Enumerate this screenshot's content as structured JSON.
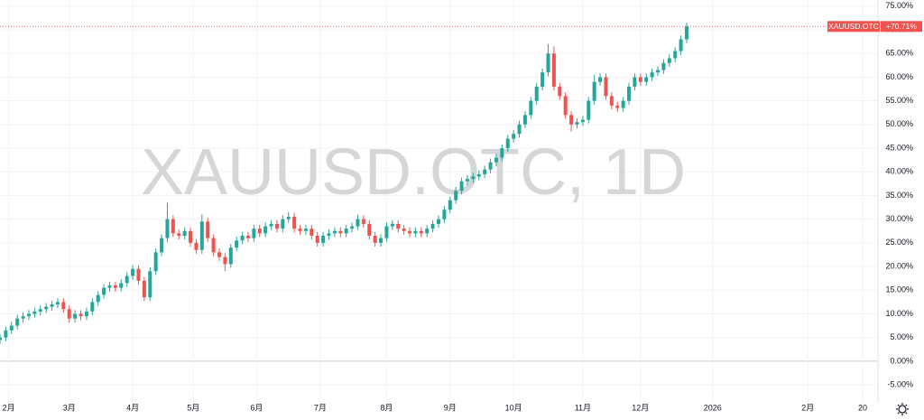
{
  "chart_data": {
    "type": "candlestick",
    "watermark": "XAUUSD.OTC, 1D",
    "symbol": "XAUUSD.OTC",
    "last_value": 70.71,
    "last_label": "+70.71%",
    "up_color": "#26a69a",
    "down_color": "#ef5350",
    "grid": true,
    "xlim": [
      0,
      304
    ],
    "ylim": [
      -8.8,
      76.3
    ],
    "xticks": [
      {
        "value": 3,
        "label": "2月"
      },
      {
        "value": 24,
        "label": "3月"
      },
      {
        "value": 46,
        "label": "4月"
      },
      {
        "value": 67,
        "label": "5月"
      },
      {
        "value": 89,
        "label": "6月"
      },
      {
        "value": 111,
        "label": "7月"
      },
      {
        "value": 134,
        "label": "8月"
      },
      {
        "value": 156,
        "label": "9月"
      },
      {
        "value": 178,
        "label": "10月"
      },
      {
        "value": 202,
        "label": "11月"
      },
      {
        "value": 222,
        "label": "12月"
      },
      {
        "value": 247,
        "label": "2026"
      },
      {
        "value": 280,
        "label": "2月"
      },
      {
        "value": 299,
        "label": "20"
      }
    ],
    "yticks": [
      {
        "value": 75,
        "label": "75.00%"
      },
      {
        "value": 70,
        "label": "70.00%"
      },
      {
        "value": 65,
        "label": "65.00%"
      },
      {
        "value": 60,
        "label": "60.00%"
      },
      {
        "value": 55,
        "label": "55.00%"
      },
      {
        "value": 50,
        "label": "50.00%"
      },
      {
        "value": 45,
        "label": "45.00%"
      },
      {
        "value": 40,
        "label": "40.00%"
      },
      {
        "value": 35,
        "label": "35.00%"
      },
      {
        "value": 30,
        "label": "30.00%"
      },
      {
        "value": 25,
        "label": "25.00%"
      },
      {
        "value": 20,
        "label": "20.00%"
      },
      {
        "value": 15,
        "label": "15.00%"
      },
      {
        "value": 10,
        "label": "10.00%"
      },
      {
        "value": 5,
        "label": "5.00%"
      },
      {
        "value": 0,
        "label": "0.00%"
      },
      {
        "value": -5,
        "label": "-5.00%"
      }
    ],
    "x": [
      0,
      2,
      4,
      6,
      8,
      10,
      12,
      14,
      16,
      18,
      20,
      22,
      24,
      26,
      28,
      30,
      32,
      34,
      36,
      38,
      40,
      42,
      44,
      46,
      48,
      50,
      52,
      54,
      56,
      58,
      60,
      62,
      64,
      66,
      68,
      70,
      72,
      74,
      76,
      78,
      80,
      82,
      84,
      86,
      88,
      90,
      92,
      94,
      96,
      98,
      100,
      102,
      104,
      106,
      108,
      110,
      112,
      114,
      116,
      118,
      120,
      122,
      124,
      126,
      128,
      130,
      132,
      134,
      136,
      138,
      140,
      142,
      144,
      146,
      148,
      150,
      152,
      154,
      156,
      158,
      160,
      162,
      164,
      166,
      168,
      170,
      172,
      174,
      176,
      178,
      180,
      182,
      184,
      186,
      188,
      190,
      192,
      194,
      196,
      198,
      200,
      202,
      204,
      206,
      208,
      210,
      212,
      214,
      216,
      218,
      220,
      222,
      224,
      226,
      228,
      230,
      232,
      234,
      236,
      238
    ],
    "open": [
      4.5,
      5,
      6.5,
      7.5,
      9,
      9.5,
      10,
      10.5,
      11,
      11.5,
      12,
      12.5,
      11,
      9,
      10,
      9.5,
      10.5,
      12.5,
      14,
      15.5,
      16,
      15.5,
      16.5,
      18,
      19.5,
      17,
      13.5,
      19,
      23,
      26,
      30,
      27,
      26.5,
      27.5,
      25,
      23.5,
      29.5,
      26,
      23,
      22,
      20.5,
      24,
      25.5,
      26.5,
      26,
      28,
      27,
      28.5,
      29,
      28,
      30,
      30.5,
      28,
      27.5,
      28,
      26.5,
      25,
      26.5,
      27,
      27.5,
      27,
      28,
      28.5,
      30,
      29,
      26.5,
      25,
      26,
      28.5,
      29,
      28,
      27.5,
      27,
      27.5,
      27,
      28,
      29,
      30,
      32,
      34,
      36,
      38,
      38.5,
      39,
      39.5,
      40.5,
      42,
      43,
      45,
      47,
      48,
      50,
      52,
      55,
      58,
      61,
      65,
      58,
      56,
      52,
      50,
      50.5,
      51,
      55,
      59,
      60,
      56,
      54,
      53.5,
      55,
      58,
      60,
      59,
      60,
      61,
      61.5,
      63,
      64,
      65.5,
      68
    ],
    "high": [
      5.8,
      7.3,
      8.3,
      9.8,
      10.3,
      10.8,
      11.3,
      11.8,
      12.3,
      12.8,
      13.3,
      13.3,
      11.8,
      10.8,
      10.8,
      11.3,
      13.3,
      14.8,
      16.3,
      16.8,
      16.8,
      17.3,
      18.8,
      20.3,
      20.3,
      17.8,
      19.8,
      23.8,
      26.8,
      33.5,
      30.8,
      27.8,
      28.3,
      28.3,
      25.8,
      31,
      30.3,
      26.8,
      23.8,
      22.8,
      24.8,
      26.3,
      27.3,
      27.3,
      28.8,
      28.8,
      29.3,
      29.8,
      29.8,
      30.8,
      31.5,
      31.3,
      28.8,
      28.8,
      28.8,
      27.3,
      27.3,
      27.8,
      28.3,
      28.3,
      28.8,
      29.3,
      31,
      30.8,
      29.8,
      27.3,
      26.8,
      29.3,
      29.8,
      29.8,
      28.8,
      28.3,
      28.3,
      28.3,
      28.8,
      29.8,
      30.8,
      32.8,
      34.8,
      36.8,
      38.8,
      39.3,
      39.8,
      40.3,
      41.3,
      42.8,
      43.8,
      45.8,
      47.8,
      48.8,
      50.8,
      52.8,
      55.8,
      58.8,
      61.8,
      67,
      66.5,
      58.8,
      56.8,
      52.8,
      51.3,
      51.8,
      55.8,
      60.5,
      60.8,
      60.8,
      56.8,
      54.8,
      55.8,
      58.8,
      60.8,
      60.8,
      60.8,
      61.8,
      62.3,
      63.8,
      64.8,
      66.3,
      68.8,
      71.5
    ],
    "low": [
      3.7,
      4.2,
      5.7,
      6.7,
      8.2,
      8.7,
      9.2,
      9.7,
      10.2,
      10.7,
      11.2,
      10.2,
      8.2,
      8.2,
      8.7,
      8.7,
      9.7,
      11.7,
      13.2,
      14.7,
      14.7,
      14.7,
      15.7,
      17.2,
      16.2,
      12.7,
      12.7,
      18.2,
      22.2,
      25.2,
      26.2,
      25.7,
      25.7,
      24.2,
      22.7,
      22.7,
      25.2,
      22.2,
      21.2,
      19,
      19.7,
      23.2,
      24.7,
      25.2,
      25.2,
      26.2,
      26.2,
      27.7,
      27.2,
      27.2,
      29.2,
      27.2,
      26.7,
      26.7,
      25.7,
      24.2,
      24.2,
      25.7,
      26.2,
      26.2,
      26.2,
      27.2,
      27.7,
      28.2,
      25.7,
      24.2,
      24.2,
      25.2,
      27.7,
      27.2,
      26.7,
      26.2,
      26.2,
      26.2,
      26.2,
      27.2,
      28.2,
      29.2,
      31.2,
      33.2,
      35.2,
      37.2,
      37.7,
      38.2,
      38.7,
      39.7,
      41.2,
      42.2,
      44.2,
      46.2,
      47.2,
      49.2,
      51.2,
      54.2,
      57.2,
      60.2,
      57.2,
      55.2,
      51.2,
      48.5,
      49.2,
      49.7,
      50.2,
      54.2,
      58.2,
      55.2,
      53.2,
      52.7,
      52.7,
      54.2,
      57.2,
      58.2,
      58.2,
      59.2,
      60.2,
      60.7,
      62.2,
      63.2,
      64.7,
      67.2
    ],
    "close": [
      5,
      6.5,
      7.5,
      9,
      9.5,
      10,
      10.5,
      11,
      11.5,
      12,
      12.5,
      11,
      9,
      10,
      9.5,
      10.5,
      12.5,
      14,
      15.5,
      16,
      15.5,
      16.5,
      18,
      19.5,
      17,
      13.5,
      19,
      23,
      26,
      30,
      27,
      26.5,
      27.5,
      25,
      23.5,
      29.5,
      26,
      23,
      22,
      20.5,
      24,
      25.5,
      26.5,
      26,
      28,
      27,
      28.5,
      29,
      28,
      30,
      30.5,
      28,
      27.5,
      28,
      26.5,
      25,
      26.5,
      27,
      27.5,
      27,
      28,
      28.5,
      30,
      29,
      26.5,
      25,
      26,
      28.5,
      29,
      28,
      27.5,
      27,
      27.5,
      27,
      28,
      29,
      30,
      32,
      34,
      36,
      38,
      38.5,
      39,
      39.5,
      40.5,
      42,
      43,
      45,
      47,
      48,
      50,
      52,
      55,
      58,
      61,
      65,
      58,
      56,
      52,
      50,
      50.5,
      51,
      55,
      59,
      60,
      56,
      54,
      53.5,
      55,
      58,
      60,
      59,
      60,
      61,
      61.5,
      63,
      64,
      65.5,
      68,
      70.71
    ]
  }
}
